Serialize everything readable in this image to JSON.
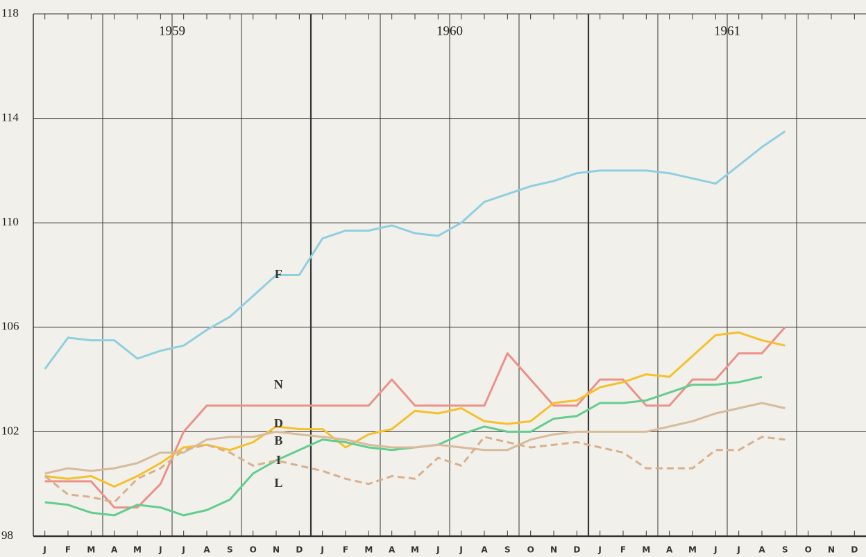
{
  "chart_data": {
    "type": "line",
    "categories": [
      "J",
      "F",
      "M",
      "A",
      "M",
      "J",
      "J",
      "A",
      "S",
      "O",
      "N",
      "D",
      "J",
      "F",
      "M",
      "A",
      "M",
      "J",
      "J",
      "A",
      "S",
      "O",
      "N",
      "D",
      "J",
      "F",
      "M",
      "A",
      "M",
      "J",
      "J",
      "A",
      "S",
      "O",
      "N",
      "D"
    ],
    "year_labels": [
      "1959",
      "1960",
      "1961"
    ],
    "ylim": [
      98,
      118
    ],
    "yticks": [
      98,
      102,
      106,
      110,
      114,
      118
    ],
    "grid": true,
    "series": [
      {
        "name": "F",
        "color": "#8fcfe0",
        "values": [
          104.4,
          105.6,
          105.5,
          105.5,
          104.8,
          105.1,
          105.3,
          105.9,
          106.4,
          107.2,
          108.0,
          108.0,
          109.4,
          109.7,
          109.7,
          109.9,
          109.6,
          109.5,
          110.0,
          110.8,
          111.1,
          111.4,
          111.6,
          111.9,
          112.0,
          112.0,
          112.0,
          111.9,
          111.7,
          111.5,
          112.2,
          112.9,
          113.5,
          null,
          null,
          null
        ]
      },
      {
        "name": "N",
        "color": "#ec9189",
        "values": [
          100.1,
          100.1,
          100.1,
          99.1,
          99.1,
          100.0,
          102.0,
          103.0,
          103.0,
          103.0,
          103.0,
          103.0,
          103.0,
          103.0,
          103.0,
          104.0,
          103.0,
          103.0,
          103.0,
          103.0,
          105.0,
          104.0,
          103.0,
          103.0,
          104.0,
          104.0,
          103.0,
          103.0,
          104.0,
          104.0,
          105.0,
          105.0,
          106.0,
          null,
          null,
          null
        ]
      },
      {
        "name": "D",
        "color": "#f5c02c",
        "values": [
          100.3,
          100.2,
          100.3,
          99.9,
          100.3,
          100.8,
          101.4,
          101.5,
          101.3,
          101.6,
          102.2,
          102.1,
          102.1,
          101.4,
          101.9,
          102.1,
          102.8,
          102.7,
          102.9,
          102.4,
          102.3,
          102.4,
          103.1,
          103.2,
          103.7,
          103.9,
          104.2,
          104.1,
          104.9,
          105.7,
          105.8,
          105.5,
          105.3,
          null,
          null,
          null
        ]
      },
      {
        "name": "B",
        "color": "#62cd8f",
        "values": [
          99.3,
          99.2,
          98.9,
          98.8,
          99.2,
          99.1,
          98.8,
          99.0,
          99.4,
          100.4,
          100.9,
          101.3,
          101.7,
          101.6,
          101.4,
          101.3,
          101.4,
          101.5,
          101.9,
          102.2,
          102.0,
          102.0,
          102.5,
          102.6,
          103.1,
          103.1,
          103.2,
          103.5,
          103.8,
          103.8,
          103.9,
          104.1,
          null,
          null,
          null,
          null
        ]
      },
      {
        "name": "I",
        "color": "#d7bb9c",
        "values": [
          100.4,
          100.6,
          100.5,
          100.6,
          100.8,
          101.2,
          101.2,
          101.7,
          101.8,
          101.8,
          102.0,
          101.9,
          101.8,
          101.7,
          101.5,
          101.4,
          101.4,
          101.5,
          101.4,
          101.3,
          101.3,
          101.7,
          101.9,
          102.0,
          102.0,
          102.0,
          102.0,
          102.2,
          102.4,
          102.7,
          102.9,
          103.1,
          102.9,
          null,
          null,
          null
        ]
      },
      {
        "name": "L",
        "color": "#d8b08c",
        "dashed": true,
        "values": [
          100.3,
          99.6,
          99.5,
          99.3,
          100.2,
          100.6,
          101.3,
          101.5,
          101.2,
          100.7,
          100.9,
          100.7,
          100.5,
          100.2,
          100.0,
          100.3,
          100.2,
          101.0,
          100.7,
          101.8,
          101.6,
          101.4,
          101.5,
          101.6,
          101.4,
          101.2,
          100.6,
          100.6,
          100.6,
          101.3,
          101.3,
          101.8,
          101.7,
          null,
          null,
          null
        ]
      }
    ]
  }
}
